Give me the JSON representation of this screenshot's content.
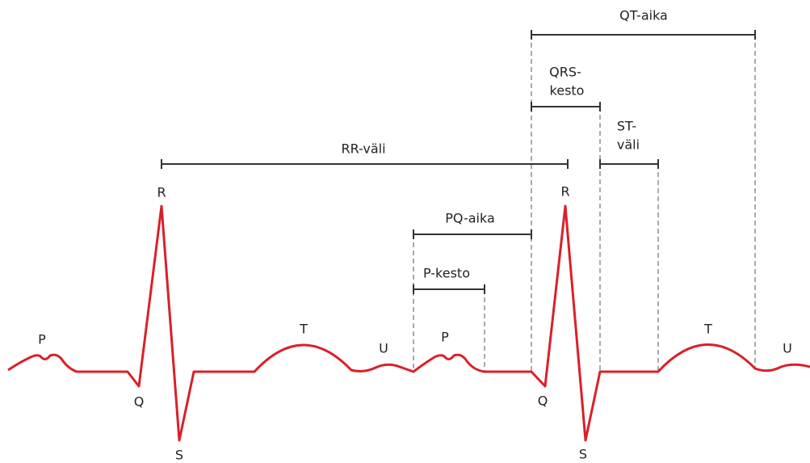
{
  "waves": [
    "P",
    "Q",
    "R",
    "S",
    "T",
    "U",
    "P",
    "Q",
    "R",
    "S",
    "T",
    "U"
  ],
  "intervals": [
    {
      "lines": [
        "RR-väli"
      ]
    },
    {
      "lines": [
        "PQ-aika"
      ]
    },
    {
      "lines": [
        "P-kesto"
      ]
    },
    {
      "lines": [
        "QRS-",
        "kesto"
      ]
    },
    {
      "lines": [
        "ST-",
        "väli"
      ]
    },
    {
      "lines": [
        "QT-aika"
      ]
    }
  ]
}
